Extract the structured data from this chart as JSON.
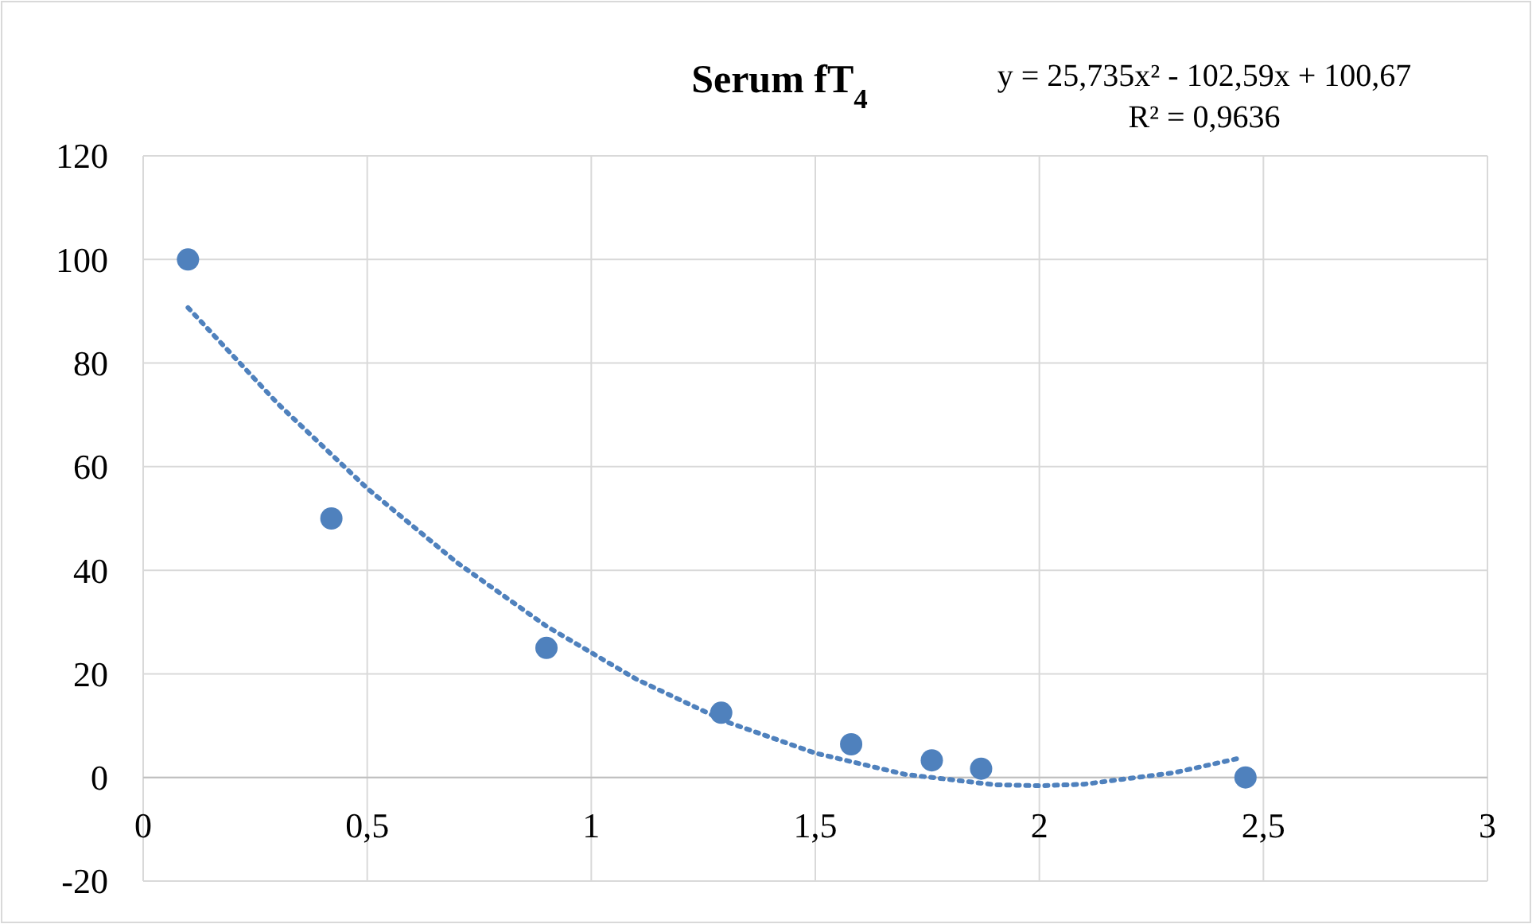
{
  "chart_data": {
    "type": "scatter",
    "title": "Serum fT$_{4}$",
    "annotations": [
      "y = 25,735x² - 102,59x + 100,67",
      "R² = 0,9636"
    ],
    "xlim": [
      0,
      3
    ],
    "xticks": [
      0,
      {
        "value": 0.5,
        "label": "0,5"
      },
      1,
      {
        "value": 1.5,
        "label": "1,5"
      },
      2,
      {
        "value": 2.5,
        "label": "2,5"
      },
      3
    ],
    "ylim": [
      -20,
      120
    ],
    "yticks": [
      -20,
      0,
      20,
      40,
      60,
      80,
      100,
      120
    ],
    "grid": true,
    "marker": "circle",
    "series": [
      {
        "color": "#4f81bd",
        "x": [
          0.1,
          0.42,
          0.9,
          1.29,
          1.58,
          1.76,
          1.87,
          2.46
        ],
        "values": [
          100,
          50,
          25,
          12.5,
          6.4,
          3.3,
          1.7,
          0
        ]
      },
      {
        "type": "line",
        "color": "#4f81bd",
        "line_style": "dotted",
        "marker": "none",
        "x": [
          0.1,
          0.3,
          0.5,
          0.7,
          0.9,
          1.1,
          1.3,
          1.5,
          1.7,
          1.9,
          2.0,
          2.1,
          2.3,
          2.45
        ],
        "values": [
          90.7,
          72.2,
          55.8,
          41.5,
          29.2,
          19,
          10.8,
          4.7,
          0.6,
          -1.4,
          -1.6,
          -1.3,
          0.9,
          3.8
        ]
      }
    ]
  }
}
